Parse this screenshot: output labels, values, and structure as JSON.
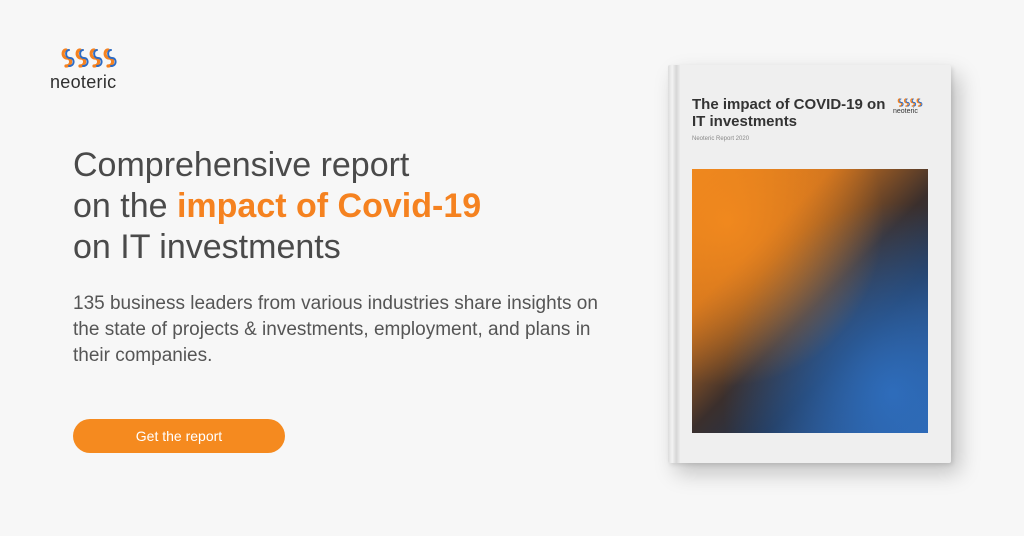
{
  "brand": {
    "logo_text": "neoteric",
    "colors": {
      "accent": "#f58220",
      "blue": "#2d6bc4"
    }
  },
  "headline": {
    "line1": "Comprehensive report",
    "line2_prefix": "on the ",
    "line2_highlight": "impact of Covid-19",
    "line3": "on IT investments"
  },
  "description": "135 business leaders from various industries share insights on the state of projects & investments, employment, and plans in their companies.",
  "cta": {
    "label": "Get the report"
  },
  "book": {
    "title": "The impact of COVID-19 on IT investments",
    "subtitle": "Neoteric Report 2020",
    "logo_text": "neoteric"
  }
}
